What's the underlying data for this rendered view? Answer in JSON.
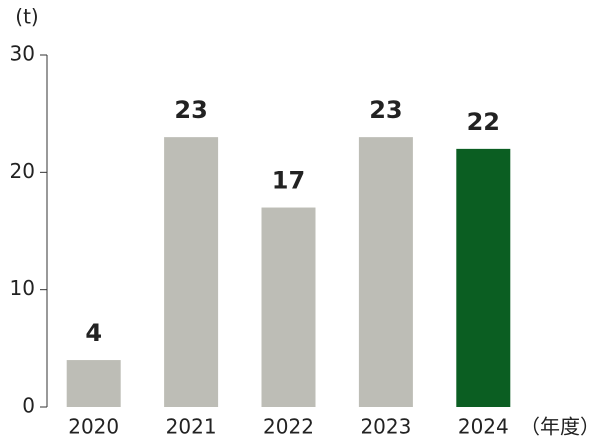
{
  "chart_data": {
    "type": "bar",
    "y_label": "(t)",
    "x_label": "（年度）",
    "categories": [
      "2020",
      "2021",
      "2022",
      "2023",
      "2024"
    ],
    "values": [
      4,
      23,
      17,
      23,
      22
    ],
    "colors": [
      "#bdbdb6",
      "#bdbdb6",
      "#bdbdb6",
      "#bdbdb6",
      "#0b5e22"
    ],
    "ylim": [
      0,
      30
    ],
    "yticks": [
      0,
      10,
      20,
      30
    ]
  }
}
